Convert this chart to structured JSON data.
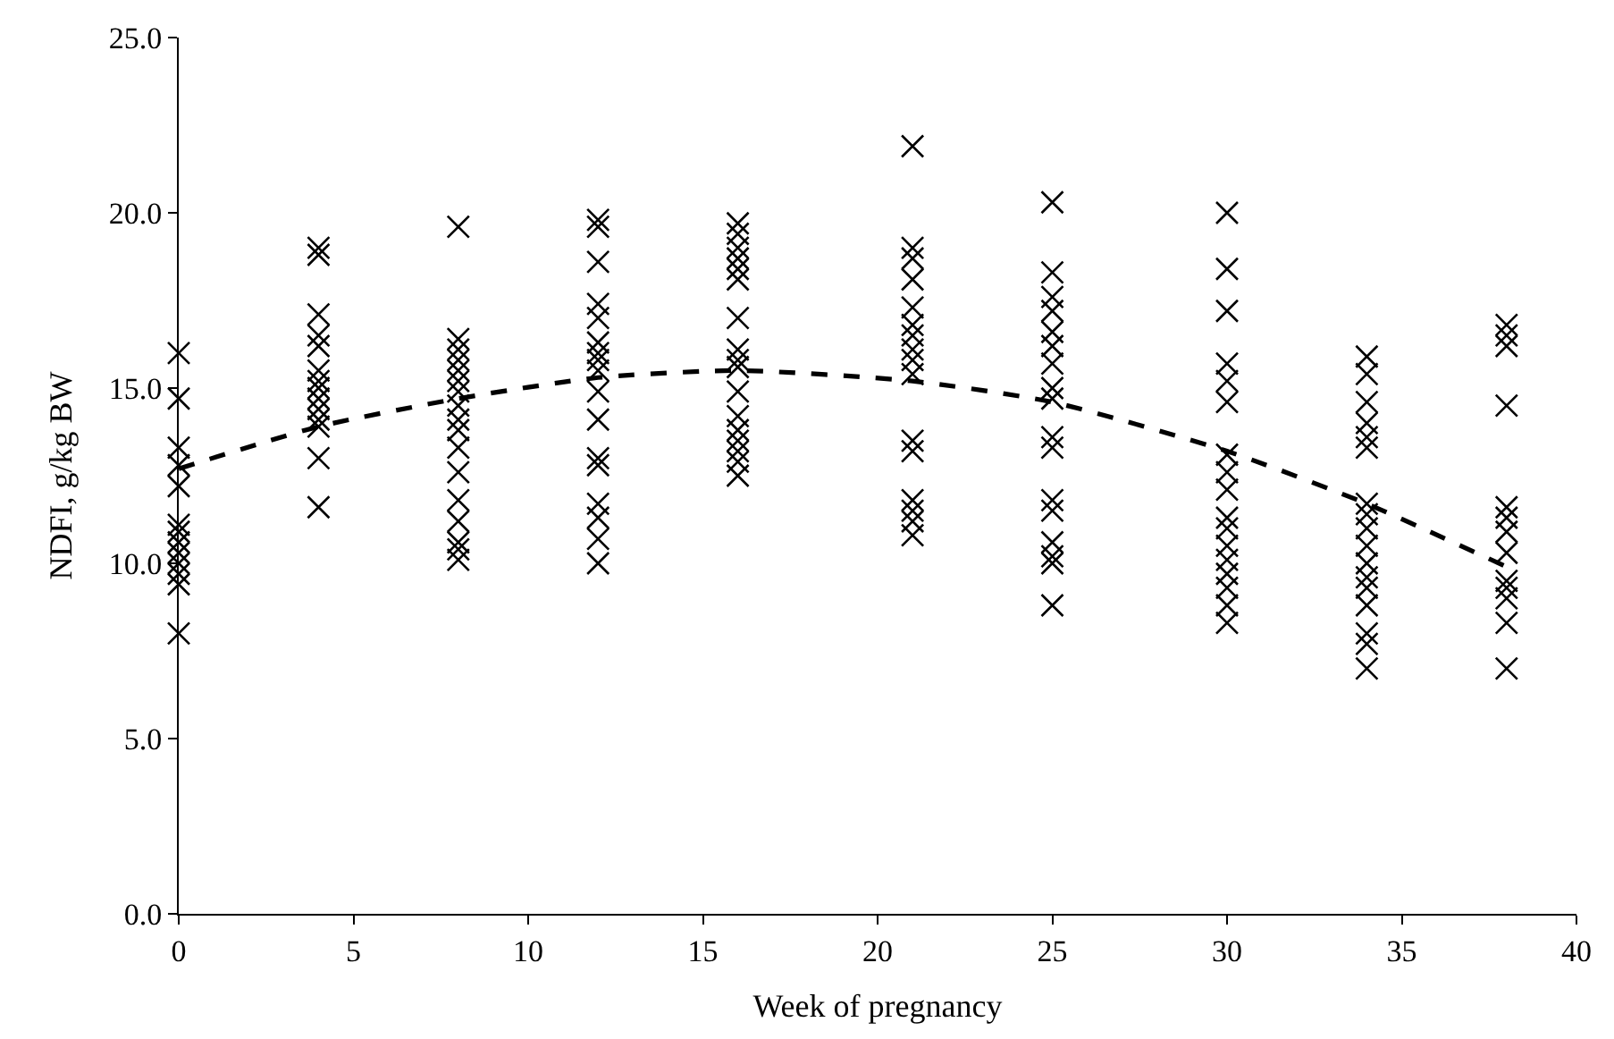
{
  "chart_data": {
    "type": "scatter",
    "xlabel": "Week of pregnancy",
    "ylabel": "NDFI, g/kg BW",
    "xlim": [
      0,
      40
    ],
    "xticks": [
      0,
      5,
      10,
      15,
      20,
      25,
      30,
      35,
      40
    ],
    "ylim": [
      0,
      25
    ],
    "yticks": [
      {
        "value": 0,
        "label": "0.0"
      },
      {
        "value": 5,
        "label": "5.0"
      },
      {
        "value": 10,
        "label": "10.0"
      },
      {
        "value": 15,
        "label": "15.0"
      },
      {
        "value": 20,
        "label": "20.0"
      },
      {
        "value": 25,
        "label": "25.0"
      }
    ],
    "marker": "cross",
    "series": [
      {
        "color": "#000000",
        "x": [
          0,
          0,
          0,
          0,
          0,
          0,
          0,
          0,
          0,
          0,
          0,
          0,
          0,
          4,
          4,
          4,
          4,
          4,
          4,
          4,
          4,
          4,
          4,
          4,
          4,
          4,
          4,
          8,
          8,
          8,
          8,
          8,
          8,
          8,
          8,
          8,
          8,
          8,
          8,
          8,
          8,
          8,
          8,
          8,
          12,
          12,
          12,
          12,
          12,
          12,
          12,
          12,
          12,
          12,
          12,
          12,
          12,
          12,
          12,
          12,
          12,
          16,
          16,
          16,
          16,
          16,
          16,
          16,
          16,
          16,
          16,
          16,
          16,
          16,
          16,
          16,
          16,
          16,
          21,
          21,
          21,
          21,
          21,
          21,
          21,
          21,
          21,
          21,
          21,
          21,
          21,
          21,
          21,
          21,
          25,
          25,
          25,
          25,
          25,
          25,
          25,
          25,
          25,
          25,
          25,
          25,
          25,
          25,
          25,
          25,
          25,
          30,
          30,
          30,
          30,
          30,
          30,
          30,
          30,
          30,
          30,
          30,
          30,
          30,
          30,
          30,
          30,
          30,
          34,
          34,
          34,
          34,
          34,
          34,
          34,
          34,
          34,
          34,
          34,
          34,
          34,
          34,
          34,
          34,
          34,
          38,
          38,
          38,
          38,
          38,
          38,
          38,
          38,
          38,
          38,
          38,
          38,
          38
        ],
        "values": [
          16.0,
          14.7,
          13.3,
          12.8,
          12.2,
          11.1,
          10.9,
          10.6,
          10.3,
          10.0,
          9.7,
          9.4,
          8.0,
          19.0,
          18.8,
          17.1,
          16.5,
          16.2,
          15.5,
          15.2,
          15.0,
          14.7,
          14.4,
          14.1,
          13.9,
          13.0,
          11.6,
          19.6,
          16.4,
          16.1,
          15.8,
          15.5,
          15.2,
          14.9,
          14.5,
          14.1,
          13.8,
          13.3,
          12.6,
          11.8,
          11.2,
          10.6,
          10.4,
          10.1,
          19.8,
          19.6,
          18.6,
          17.4,
          17.0,
          16.3,
          16.0,
          15.8,
          15.5,
          14.9,
          14.1,
          13.0,
          12.8,
          11.7,
          11.3,
          10.7,
          10.0,
          19.7,
          19.4,
          19.0,
          18.7,
          18.4,
          18.1,
          17.0,
          16.1,
          15.8,
          15.6,
          14.9,
          14.2,
          13.8,
          13.5,
          13.2,
          12.9,
          12.5,
          21.9,
          19.0,
          18.7,
          18.1,
          17.3,
          16.8,
          16.5,
          16.1,
          15.8,
          15.4,
          13.5,
          13.2,
          11.8,
          11.5,
          11.2,
          10.8,
          20.3,
          18.3,
          17.6,
          17.2,
          16.6,
          16.2,
          15.7,
          15.0,
          14.7,
          13.6,
          13.3,
          11.8,
          11.5,
          10.6,
          10.2,
          10.0,
          8.8,
          20.0,
          18.4,
          17.2,
          15.7,
          15.2,
          14.6,
          13.1,
          12.6,
          12.1,
          11.3,
          11.0,
          10.5,
          10.1,
          9.7,
          9.3,
          8.8,
          8.3,
          15.9,
          15.4,
          14.6,
          14.0,
          13.6,
          13.3,
          11.7,
          11.4,
          11.0,
          10.5,
          10.0,
          9.6,
          9.3,
          8.8,
          8.0,
          7.7,
          7.0,
          16.8,
          16.5,
          16.2,
          14.5,
          11.6,
          11.3,
          10.9,
          10.3,
          9.5,
          9.3,
          9.0,
          8.3,
          7.0
        ]
      },
      {
        "type": "line",
        "color": "#000000",
        "marker": "none",
        "line_style": "dashed",
        "x": [
          0,
          4,
          8,
          12,
          16,
          21,
          25,
          30,
          34,
          38
        ],
        "values": [
          12.7,
          13.9,
          14.7,
          15.3,
          15.5,
          15.2,
          14.6,
          13.2,
          11.7,
          9.9
        ]
      }
    ]
  }
}
